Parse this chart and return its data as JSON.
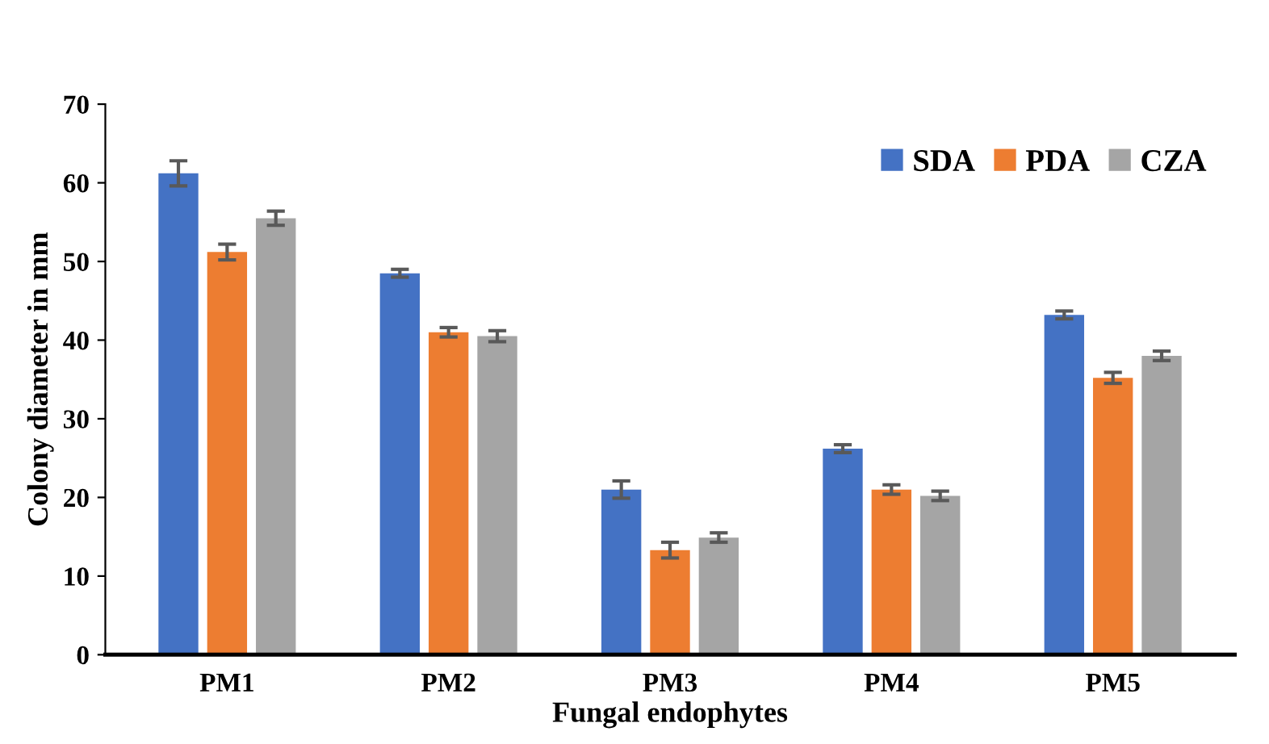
{
  "chart_data": {
    "type": "bar",
    "xlabel": "Fungal endophytes",
    "ylabel": "Colony diameter in mm",
    "categories": [
      "PM1",
      "PM2",
      "PM3",
      "PM4",
      "PM5"
    ],
    "series": [
      {
        "name": "SDA",
        "color": "#4472c4",
        "values": [
          61.2,
          48.5,
          21.0,
          26.2,
          43.2
        ],
        "errors": [
          1.6,
          0.5,
          1.1,
          0.5,
          0.5
        ]
      },
      {
        "name": "PDA",
        "color": "#ed7d31",
        "values": [
          51.2,
          41.0,
          13.3,
          21.0,
          35.2
        ],
        "errors": [
          1.0,
          0.6,
          1.0,
          0.6,
          0.7
        ]
      },
      {
        "name": "CZA",
        "color": "#a5a5a5",
        "values": [
          55.5,
          40.5,
          14.9,
          20.2,
          38.0
        ],
        "errors": [
          0.9,
          0.7,
          0.6,
          0.6,
          0.6
        ]
      }
    ],
    "ylim": [
      0,
      70
    ],
    "yticks": [
      0,
      10,
      20,
      30,
      40,
      50,
      60,
      70
    ],
    "grid": false,
    "legend": "top right"
  }
}
